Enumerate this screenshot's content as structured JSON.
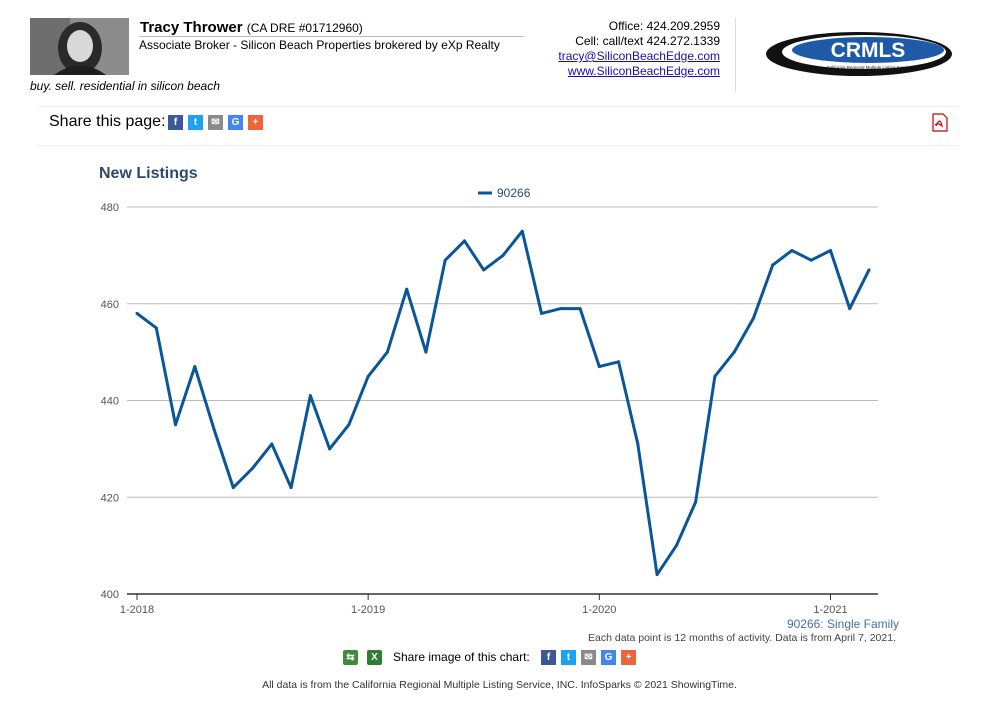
{
  "agent": {
    "name": "Tracy Thrower",
    "dre": "(CA DRE #01712960)",
    "title": "Associate Broker - Silicon Beach Properties brokered by eXp Realty",
    "tagline": "buy. sell. residential in silicon beach"
  },
  "contact": {
    "office": "Office: 424.209.2959",
    "cell": "Cell: call/text 424.272.1339",
    "email": "tracy@SiliconBeachEdge.com",
    "website": "www.SiliconBeachEdge.com"
  },
  "logo": {
    "text": "CRMLS",
    "subtext": "California Regional Multiple Listing Service, Inc."
  },
  "share_page": {
    "label": "Share this page:"
  },
  "share_chart": {
    "label": "Share image of this chart:"
  },
  "series_note": "90266: Single Family",
  "footnote": "Each data point is 12 months of activity. Data is from April 7, 2021.",
  "footer": "All data is from the California Regional Multiple Listing Service, INC. InfoSparks © 2021 ShowingTime.",
  "colors": {
    "series": "#0a5699",
    "title": "#2e4a6b",
    "grid": "#bbbbbb"
  },
  "chart_data": {
    "type": "line",
    "title": "New Listings",
    "legend_position": "top-center",
    "grid": true,
    "ylim": [
      400,
      480
    ],
    "y_ticks": [
      400,
      420,
      440,
      460,
      480
    ],
    "x_ticks": [
      "1-2018",
      "1-2019",
      "1-2020",
      "1-2021"
    ],
    "x_start": "2018-01",
    "series": [
      {
        "name": "90266",
        "color": "#0a5699",
        "x": [
          "2018-01",
          "2018-02",
          "2018-03",
          "2018-04",
          "2018-05",
          "2018-06",
          "2018-07",
          "2018-08",
          "2018-09",
          "2018-10",
          "2018-11",
          "2018-12",
          "2019-01",
          "2019-02",
          "2019-03",
          "2019-04",
          "2019-05",
          "2019-06",
          "2019-07",
          "2019-08",
          "2019-09",
          "2019-10",
          "2019-11",
          "2019-12",
          "2020-01",
          "2020-02",
          "2020-03",
          "2020-04",
          "2020-05",
          "2020-06",
          "2020-07",
          "2020-08",
          "2020-09",
          "2020-10",
          "2020-11",
          "2020-12",
          "2021-01",
          "2021-02",
          "2021-03"
        ],
        "values": [
          458,
          455,
          435,
          447,
          434,
          422,
          426,
          431,
          422,
          441,
          430,
          435,
          445,
          450,
          463,
          450,
          469,
          473,
          467,
          470,
          475,
          458,
          459,
          459,
          447,
          448,
          431,
          404,
          410,
          419,
          445,
          450,
          457,
          468,
          471,
          469,
          471,
          459,
          467
        ]
      }
    ]
  }
}
